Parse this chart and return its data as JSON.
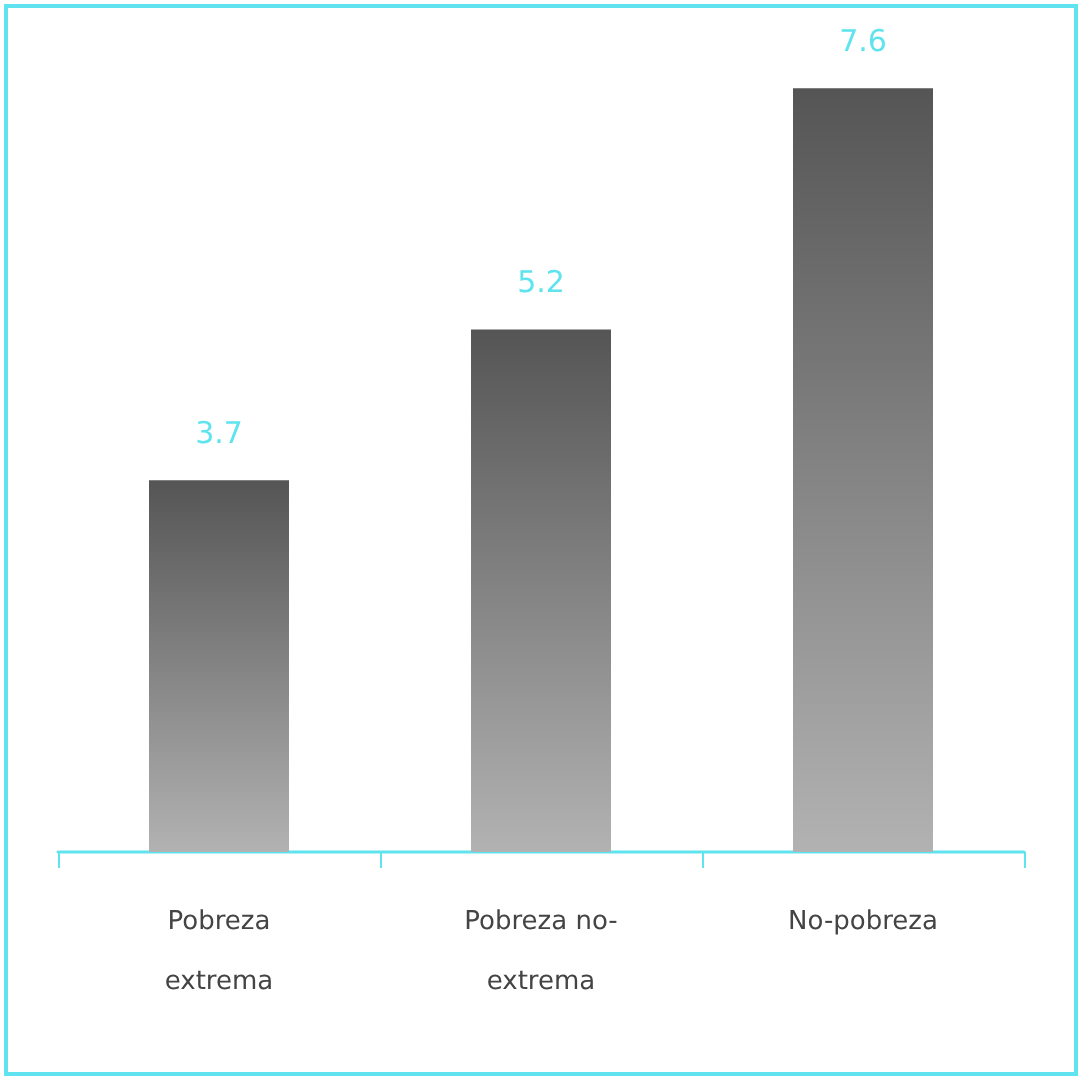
{
  "chart_data": {
    "type": "bar",
    "categories": [
      "Pobreza extrema",
      "Pobreza no-extrema",
      "No-pobreza"
    ],
    "values": [
      3.7,
      5.2,
      7.6
    ],
    "color": "#555555",
    "data_labels": true
  }
}
